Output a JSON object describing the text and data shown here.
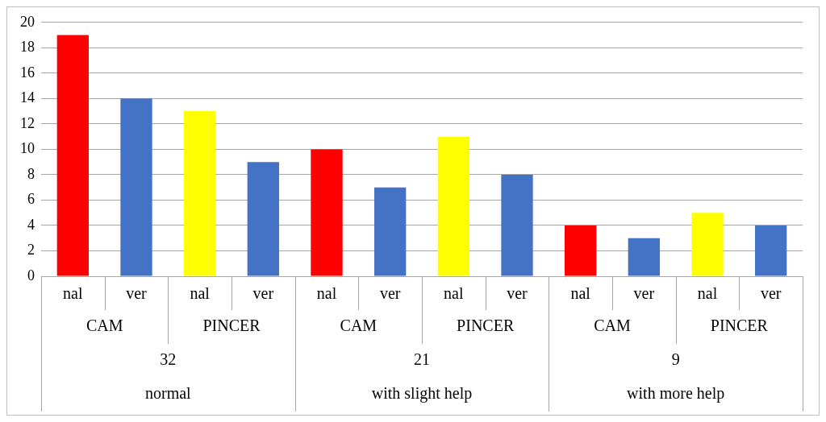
{
  "chart_data": {
    "type": "bar",
    "categories": [
      "nal",
      "ver",
      "nal",
      "ver",
      "nal",
      "ver",
      "nal",
      "ver",
      "nal",
      "ver",
      "nal",
      "ver"
    ],
    "values": [
      19,
      14,
      13,
      9,
      10,
      7,
      11,
      8,
      4,
      3,
      5,
      4
    ],
    "colors": [
      "#ff0000",
      "#4472c4",
      "#ffff00",
      "#4472c4",
      "#ff0000",
      "#4472c4",
      "#ffff00",
      "#4472c4",
      "#ff0000",
      "#4472c4",
      "#ffff00",
      "#4472c4"
    ],
    "ylim": [
      0,
      20
    ],
    "yticks": [
      0,
      2,
      4,
      6,
      8,
      10,
      12,
      14,
      16,
      18,
      20
    ],
    "grid": "y",
    "legend": false,
    "annotations": [
      "CAM",
      "PINCER",
      "CAM",
      "PINCER",
      "CAM",
      "PINCER",
      "32",
      "21",
      "9",
      "normal",
      "with slight help",
      "with more help"
    ]
  }
}
